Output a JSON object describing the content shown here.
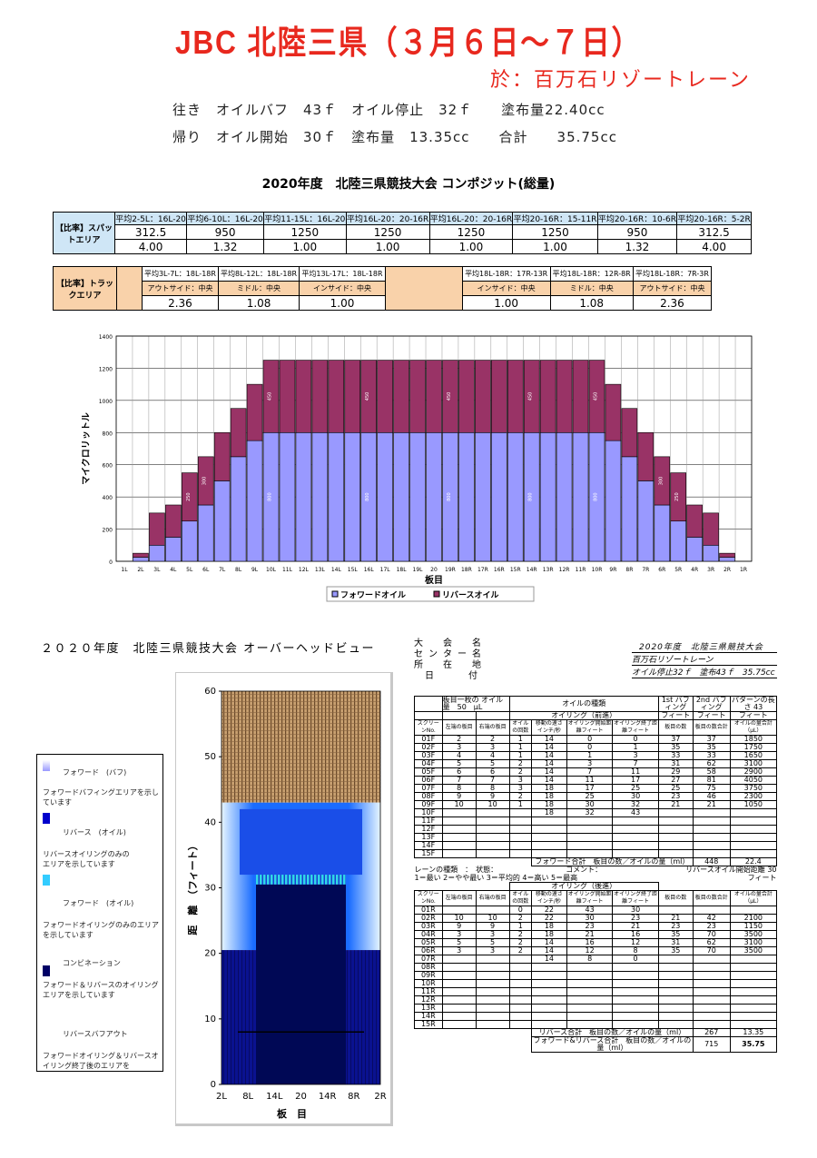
{
  "header": {
    "title": "JBC 北陸三県（３月６日～７日）",
    "venue": "於：百万石リゾートレーン",
    "oil_line1": "往き　オイルバフ　43ｆ　オイル停止　32ｆ　　塗布量22.40cc",
    "oil_line2": "帰り　オイル開始　30ｆ　塗布量　13.35cc　　合計　　35.75cc"
  },
  "composite_title": "2020年度　北陸三県競技大会 コンポジット(総量)",
  "ratio_spot": {
    "label": "【比率】スパットエリア",
    "heads": [
      "平均2-5L：16L-20",
      "平均6-10L：16L-20",
      "平均11-15L：16L-20",
      "平均16L-20：20-16R",
      "平均16L-20：20-16R",
      "平均20-16R：15-11R",
      "平均20-16R：10-6R",
      "平均20-16R：5-2R"
    ],
    "values": [
      "312.5",
      "950",
      "1250",
      "1250",
      "1250",
      "1250",
      "950",
      "312.5"
    ],
    "ratios": [
      "4.00",
      "1.32",
      "1.00",
      "1.00",
      "1.00",
      "1.00",
      "1.32",
      "4.00"
    ]
  },
  "ratio_track": {
    "label": "【比率】トラックエリア",
    "heads": [
      "平均3L-7L：18L-18R",
      "平均8L-12L：18L-18R",
      "平均13L-17L：18L-18R",
      "平均18L-18R：17R-13R",
      "平均18L-18R：12R-8R",
      "平均18L-18R：7R-3R"
    ],
    "areas": [
      "アウトサイド：中央",
      "ミドル：中央",
      "インサイド：中央",
      "インサイド：中央",
      "ミドル：中央",
      "アウトサイド：中央"
    ],
    "ratios": [
      "2.36",
      "1.08",
      "1.00",
      "1.00",
      "1.08",
      "2.36"
    ]
  },
  "chart_data": {
    "type": "bar",
    "stacked": true,
    "ylabel": "マイクロリットル",
    "xlabel": "板目",
    "ylim": [
      0,
      1400
    ],
    "yticks": [
      0,
      200,
      400,
      600,
      800,
      1000,
      1200,
      1400
    ],
    "categories": [
      "1L",
      "2L",
      "3L",
      "4L",
      "5L",
      "6L",
      "7L",
      "8L",
      "9L",
      "10L",
      "11L",
      "12L",
      "13L",
      "14L",
      "15L",
      "16L",
      "17L",
      "18L",
      "19L",
      "20",
      "19R",
      "18R",
      "17R",
      "16R",
      "15R",
      "14R",
      "13R",
      "12R",
      "11R",
      "10R",
      "9R",
      "8R",
      "7R",
      "6R",
      "5R",
      "4R",
      "3R",
      "2R",
      "1R"
    ],
    "series": [
      {
        "name": "フォワードオイル",
        "color": "#9999ff",
        "values": [
          0,
          25,
          100,
          150,
          250,
          350,
          500,
          650,
          750,
          800,
          800,
          800,
          800,
          800,
          800,
          800,
          800,
          800,
          800,
          800,
          800,
          800,
          800,
          800,
          800,
          800,
          800,
          800,
          800,
          800,
          750,
          650,
          500,
          350,
          250,
          150,
          100,
          25,
          0
        ]
      },
      {
        "name": "リバースオイル",
        "color": "#993366",
        "values": [
          0,
          25,
          200,
          200,
          300,
          300,
          300,
          300,
          350,
          450,
          450,
          450,
          450,
          450,
          450,
          450,
          450,
          450,
          450,
          450,
          450,
          450,
          450,
          450,
          450,
          450,
          450,
          450,
          450,
          450,
          350,
          300,
          300,
          300,
          300,
          200,
          200,
          25,
          0
        ]
      }
    ],
    "data_labels": {
      "9": "450",
      "15": "450",
      "20": "450",
      "25": "450",
      "29": "450",
      "5": "300",
      "33": "300",
      "4": "250",
      "34": "250",
      "9f": "800",
      "15f": "800",
      "20f": "800",
      "25f": "800",
      "29f": "800"
    }
  },
  "overhead": {
    "title": "２０２０年度　北陸三県競技大会 オーバーヘッドビュー",
    "ylabel": "距　離　（フィート）",
    "xlabel": "板　目",
    "yticks": [
      "0",
      "10",
      "20",
      "30",
      "40",
      "50",
      "60"
    ],
    "xticks": [
      "2L",
      "8L",
      "14L",
      "20",
      "14R",
      "8R",
      "2R"
    ]
  },
  "legend": [
    {
      "title": "フォワード　(バフ)",
      "desc": "フォワードバフィングエリアを示しています",
      "color": "#ccccff"
    },
    {
      "title": "リバース　(オイル)",
      "desc": "リバースオイリングのみのエリアを示しています",
      "color": "#0000cc"
    },
    {
      "title": "フォワード　(オイル)",
      "desc": "フォワードオイリングのみのエリアを示しています",
      "color": "#33ccff"
    },
    {
      "title": "コンビネーション",
      "desc": "フォワード＆リバースのオイリングエリアを示しています",
      "color": "#000066"
    },
    {
      "title": "リバースバフアウト",
      "desc": "フォワードオイリング＆リバースオイリング終了後のエリアを",
      "color": ""
    }
  ],
  "meta": {
    "labels": [
      "大　会　名",
      "センター名",
      "所　在　地",
      "日　　付"
    ],
    "event": "2020年度　北陸三県競技大会",
    "center": "百万石リゾートレーン",
    "oil": "オイル停止32ｆ　塗布43ｆ　35.75cc"
  },
  "table": {
    "fwd_head": {
      "per_board": "板目一枚の",
      "oil_qty": "オイル量",
      "qty": "50",
      "unit": "μL",
      "oil_type": "オイルの種類",
      "oiling_fwd": "オイリング（前進）",
      "buff1": "1st バフィング",
      "buff2": "2nd バフィング",
      "pattern": "パターンの長さ",
      "pattern_len": "43",
      "feet": "フィート"
    },
    "cols": [
      "スクリーンNo.",
      "左端の板目",
      "右端の板目",
      "オイルの回数",
      "移動の速さ インチ/秒",
      "オイリング開始距離フィート",
      "オイリング終了距離フィート",
      "板目の数",
      "板目の数合計",
      "オイルの量合計（μL）"
    ],
    "fwd_rows": [
      [
        "01F",
        "2",
        "2",
        "1",
        "14",
        "0",
        "0",
        "37",
        "37",
        "1850"
      ],
      [
        "02F",
        "3",
        "3",
        "1",
        "14",
        "0",
        "1",
        "35",
        "35",
        "1750"
      ],
      [
        "03F",
        "4",
        "4",
        "1",
        "14",
        "1",
        "3",
        "33",
        "33",
        "1650"
      ],
      [
        "04F",
        "5",
        "5",
        "2",
        "14",
        "3",
        "7",
        "31",
        "62",
        "3100"
      ],
      [
        "05F",
        "6",
        "6",
        "2",
        "14",
        "7",
        "11",
        "29",
        "58",
        "2900"
      ],
      [
        "06F",
        "7",
        "7",
        "3",
        "14",
        "11",
        "17",
        "27",
        "81",
        "4050"
      ],
      [
        "07F",
        "8",
        "8",
        "3",
        "18",
        "17",
        "25",
        "25",
        "75",
        "3750"
      ],
      [
        "08F",
        "9",
        "9",
        "2",
        "18",
        "25",
        "30",
        "23",
        "46",
        "2300"
      ],
      [
        "09F",
        "10",
        "10",
        "1",
        "18",
        "30",
        "32",
        "21",
        "21",
        "1050"
      ],
      [
        "10F",
        "",
        "",
        "",
        "18",
        "32",
        "43",
        "",
        "",
        ""
      ],
      [
        "11F",
        "",
        "",
        "",
        "",
        "",
        "",
        "",
        "",
        ""
      ],
      [
        "12F",
        "",
        "",
        "",
        "",
        "",
        "",
        "",
        "",
        ""
      ],
      [
        "13F",
        "",
        "",
        "",
        "",
        "",
        "",
        "",
        "",
        ""
      ],
      [
        "14F",
        "",
        "",
        "",
        "",
        "",
        "",
        "",
        "",
        ""
      ],
      [
        "15F",
        "",
        "",
        "",
        "",
        "",
        "",
        "",
        "",
        ""
      ]
    ],
    "fwd_total": {
      "label": "フォワード合計　板目の数／オイルの量（ml）",
      "boards": "448",
      "ml": "22.4"
    },
    "mid": {
      "lane_type": "レーンの種類　：",
      "state": "状態：",
      "state_opts": "1＝最い 2＝やや最い 3＝平均的 4＝高い 5＝最高",
      "comment": "コメント：",
      "rev_start": "リバースオイル開始距離",
      "rev_start_val": "30",
      "feet": "フィート",
      "oiling_rev": "オイリング（後進）"
    },
    "rev_rows": [
      [
        "01R",
        "",
        "",
        "0",
        "22",
        "43",
        "30",
        "",
        "",
        ""
      ],
      [
        "02R",
        "10",
        "10",
        "2",
        "22",
        "30",
        "23",
        "21",
        "42",
        "2100"
      ],
      [
        "03R",
        "9",
        "9",
        "1",
        "18",
        "23",
        "21",
        "23",
        "23",
        "1150"
      ],
      [
        "04R",
        "3",
        "3",
        "2",
        "18",
        "21",
        "16",
        "35",
        "70",
        "3500"
      ],
      [
        "05R",
        "5",
        "5",
        "2",
        "14",
        "16",
        "12",
        "31",
        "62",
        "3100"
      ],
      [
        "06R",
        "3",
        "3",
        "2",
        "14",
        "12",
        "8",
        "35",
        "70",
        "3500"
      ],
      [
        "07R",
        "",
        "",
        "",
        "14",
        "8",
        "0",
        "",
        "",
        ""
      ],
      [
        "08R",
        "",
        "",
        "",
        "",
        "",
        "",
        "",
        "",
        ""
      ],
      [
        "09R",
        "",
        "",
        "",
        "",
        "",
        "",
        "",
        "",
        ""
      ],
      [
        "10R",
        "",
        "",
        "",
        "",
        "",
        "",
        "",
        "",
        ""
      ],
      [
        "11R",
        "",
        "",
        "",
        "",
        "",
        "",
        "",
        "",
        ""
      ],
      [
        "12R",
        "",
        "",
        "",
        "",
        "",
        "",
        "",
        "",
        ""
      ],
      [
        "13R",
        "",
        "",
        "",
        "",
        "",
        "",
        "",
        "",
        ""
      ],
      [
        "14R",
        "",
        "",
        "",
        "",
        "",
        "",
        "",
        "",
        ""
      ],
      [
        "15R",
        "",
        "",
        "",
        "",
        "",
        "",
        "",
        "",
        ""
      ]
    ],
    "rev_total": {
      "label": "リバース合計　板目の数／オイルの量（ml）",
      "boards": "267",
      "ml": "13.35"
    },
    "all_total": {
      "label": "フォワード&リバース合計　板目の数／オイルの量（ml）",
      "boards": "715",
      "ml": "35.75"
    }
  }
}
